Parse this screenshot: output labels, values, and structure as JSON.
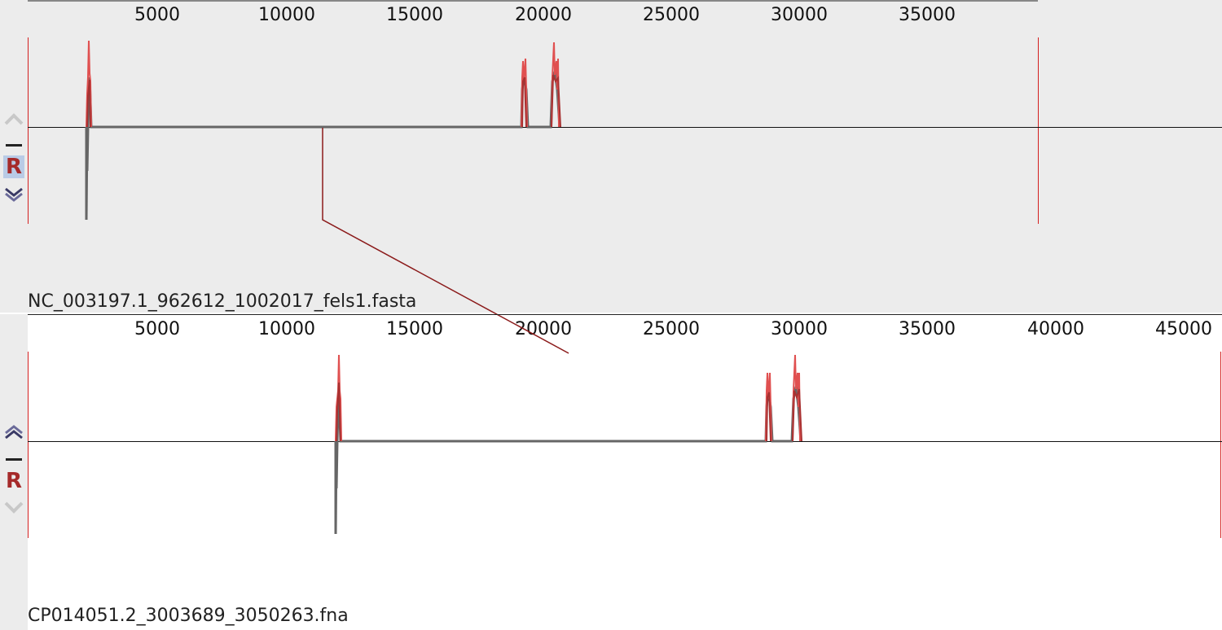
{
  "tracks": [
    {
      "filename": "NC_003197.1_962612_1002017_fels1.fasta",
      "ticks": [
        "5000",
        "10000",
        "15000",
        "20000",
        "25000",
        "30000",
        "35000"
      ],
      "controls": {
        "up_icon": "chevron-up-icon",
        "minus_icon": "minus-icon",
        "reverse_label": "R",
        "down_icon": "chevron-down-icon"
      },
      "reverse_selected": true
    },
    {
      "filename": "CP014051.2_3003689_3050263.fna",
      "ticks": [
        "5000",
        "10000",
        "15000",
        "20000",
        "25000",
        "30000",
        "35000",
        "40000",
        "45000"
      ],
      "controls": {
        "up_icon": "chevron-up-icon",
        "minus_icon": "minus-icon",
        "reverse_label": "R",
        "down_icon": "chevron-down-icon"
      },
      "reverse_selected": false
    }
  ],
  "colors": {
    "panel_bg": "#ececec",
    "match_line": "#8b1a1a",
    "profile_red": "#e24b4b",
    "profile_dark": "#a83232",
    "profile_gray": "#666666",
    "axis": "#222222"
  }
}
